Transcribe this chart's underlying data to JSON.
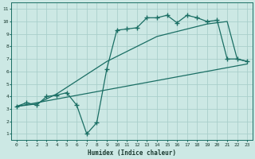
{
  "xlabel": "Humidex (Indice chaleur)",
  "xlim": [
    -0.5,
    23.5
  ],
  "ylim": [
    0.5,
    11.5
  ],
  "xticks": [
    0,
    1,
    2,
    3,
    4,
    5,
    6,
    7,
    8,
    9,
    10,
    11,
    12,
    13,
    14,
    15,
    16,
    17,
    18,
    19,
    20,
    21,
    22,
    23
  ],
  "yticks": [
    1,
    2,
    3,
    4,
    5,
    6,
    7,
    8,
    9,
    10,
    11
  ],
  "bg_color": "#cce8e4",
  "grid_color": "#aacfcb",
  "line_color": "#1a6e64",
  "line1_x": [
    0,
    1,
    2,
    3,
    4,
    5,
    6,
    7,
    8,
    9,
    10,
    11,
    12,
    13,
    14,
    15,
    16,
    17,
    18,
    19,
    20,
    21,
    22,
    23
  ],
  "line1_y": [
    3.2,
    3.5,
    3.3,
    4.0,
    4.1,
    4.3,
    3.3,
    1.0,
    1.9,
    6.2,
    9.3,
    9.4,
    9.5,
    10.3,
    10.3,
    10.5,
    9.9,
    10.5,
    10.3,
    10.0,
    10.1,
    7.0,
    7.0,
    6.8
  ],
  "line2_x": [
    0,
    2,
    4,
    9,
    14,
    19,
    21,
    22,
    23
  ],
  "line2_y": [
    3.2,
    3.4,
    4.2,
    6.8,
    8.8,
    9.8,
    10.0,
    7.0,
    6.8
  ],
  "line3_x": [
    0,
    23
  ],
  "line3_y": [
    3.2,
    6.6
  ],
  "marker": "+",
  "markersize": 4,
  "linewidth": 0.9
}
